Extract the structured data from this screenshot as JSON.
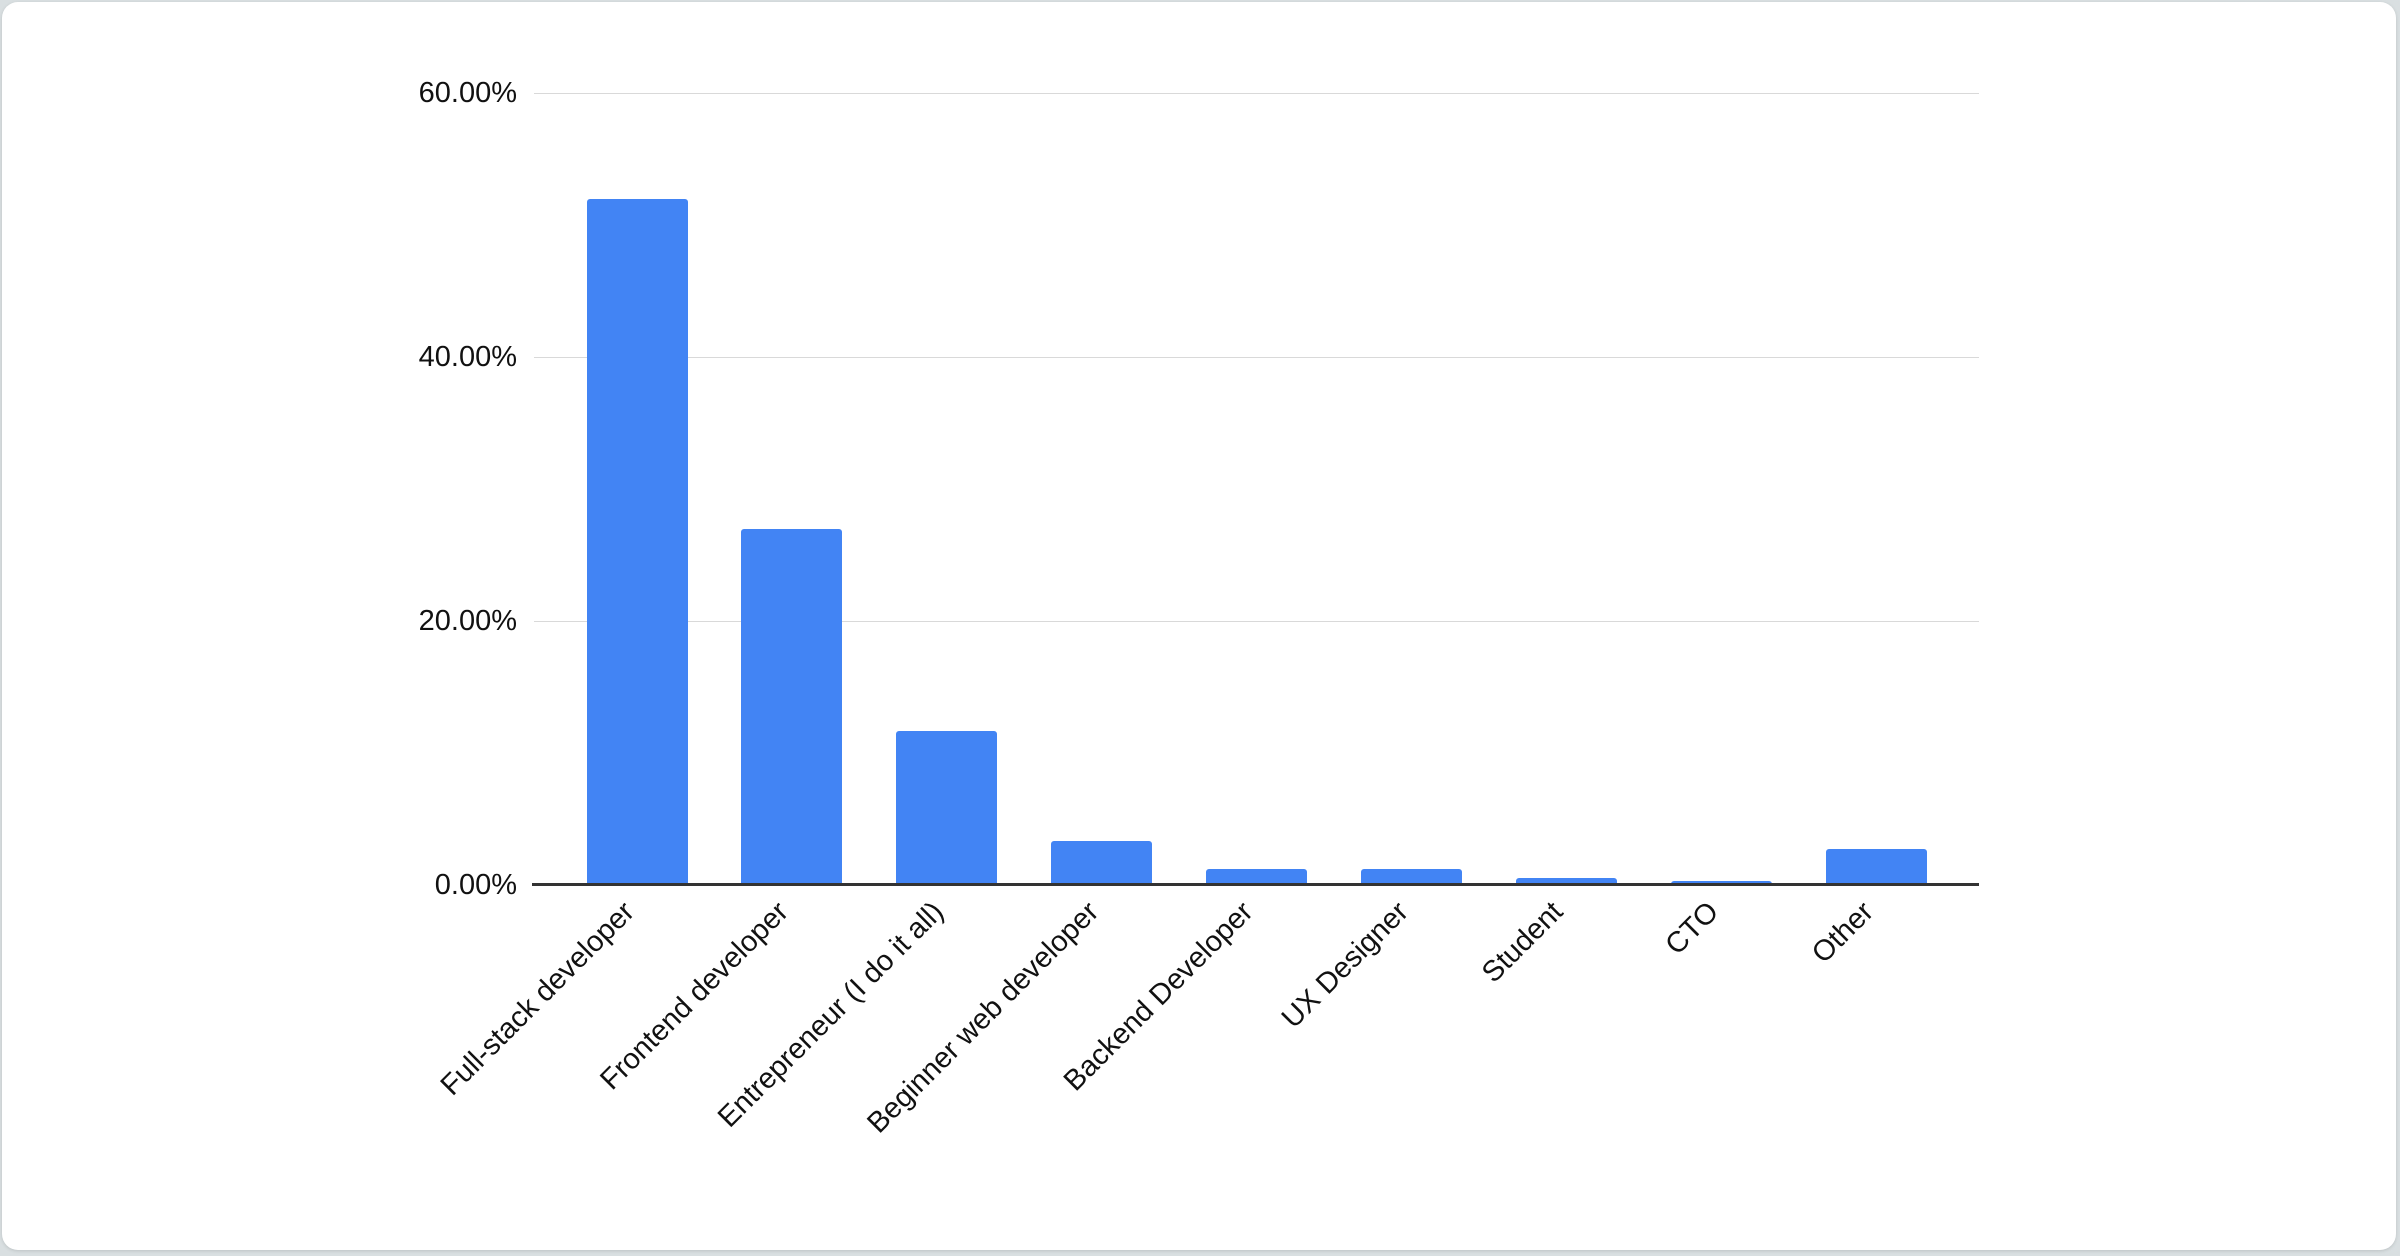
{
  "page": {
    "background_color": "#d9dfe1",
    "card_color": "#ffffff"
  },
  "chart_data": {
    "type": "bar",
    "title": "",
    "xlabel": "",
    "ylabel": "",
    "categories": [
      "Full-stack developer",
      "Frontend developer",
      "Entrepreneur (I do it all)",
      "Beginner web developer",
      "Backend Developer",
      "UX Designer",
      "Student",
      "CTO",
      "Other"
    ],
    "values": [
      52.0,
      27.0,
      11.7,
      3.3,
      1.2,
      1.2,
      0.5,
      0.3,
      2.7
    ],
    "value_unit": "%",
    "y_ticks": [
      "0.00%",
      "20.00%",
      "40.00%",
      "60.00%"
    ],
    "y_tick_values": [
      0,
      20,
      40,
      60
    ],
    "ylim": [
      0,
      60
    ],
    "grid": "horizontal",
    "legend": "none",
    "x_label_rotation_deg": -45,
    "bar_color": "#4284f4",
    "gridline_color": "#d9d9d9",
    "axis_color": "#333333",
    "text_color": "#111111"
  }
}
